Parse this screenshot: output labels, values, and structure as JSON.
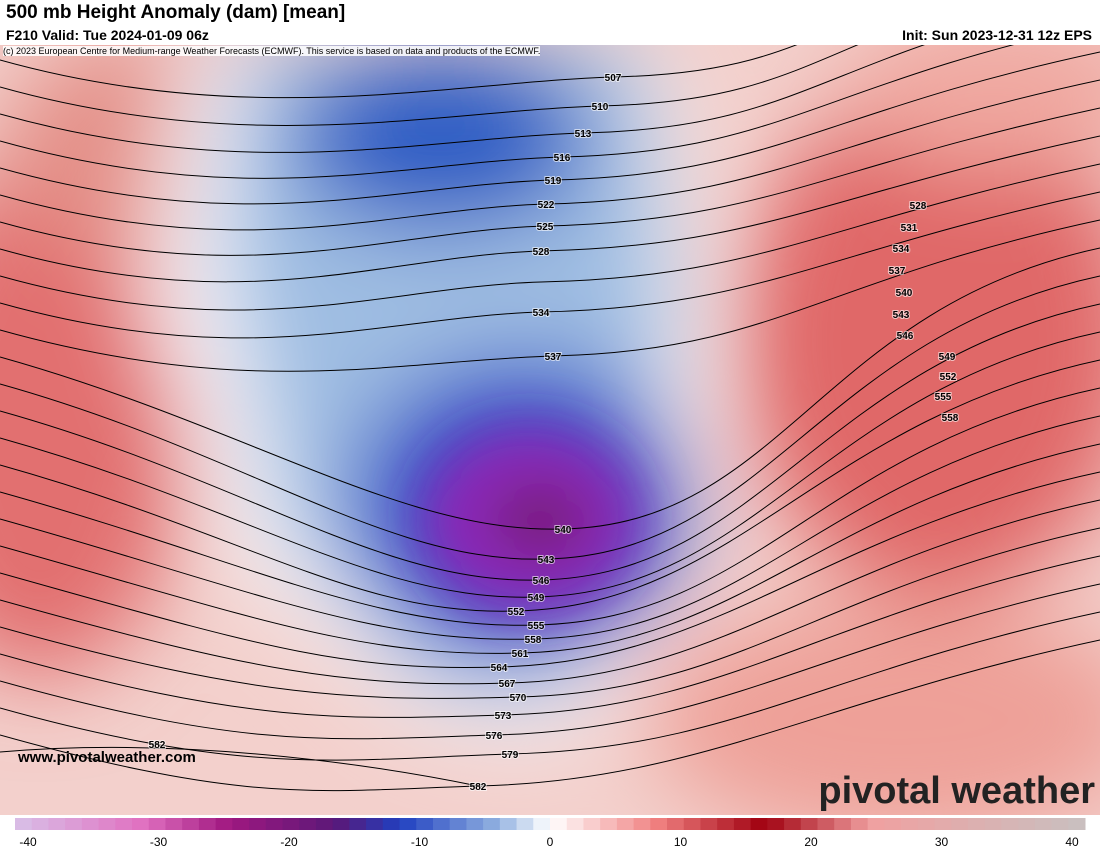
{
  "header": {
    "title": "500 mb Height Anomaly (dam) [mean]",
    "valid": "F210 Valid: Tue 2024-01-09 06z",
    "init": "Init: Sun 2023-12-31 12z EPS",
    "credit": "(c) 2023 European Centre for Medium-range Weather Forecasts (ECMWF). This service is based on data and products of the ECMWF."
  },
  "contour_labels": [
    "507",
    "510",
    "513",
    "516",
    "519",
    "522",
    "525",
    "528",
    "534",
    "537",
    "540",
    "543",
    "546",
    "549",
    "552",
    "555",
    "558",
    "561",
    "564",
    "567",
    "570",
    "573",
    "576",
    "579",
    "582",
    "582",
    "528",
    "531",
    "534",
    "537",
    "540",
    "543",
    "546",
    "549",
    "552",
    "555",
    "558"
  ],
  "colorbar": {
    "ticks": [
      -40,
      -30,
      -20,
      -10,
      0,
      10,
      20,
      30,
      40
    ]
  },
  "footer": {
    "website": "www.pivotalweather.com",
    "logo": "pivotal weather"
  }
}
